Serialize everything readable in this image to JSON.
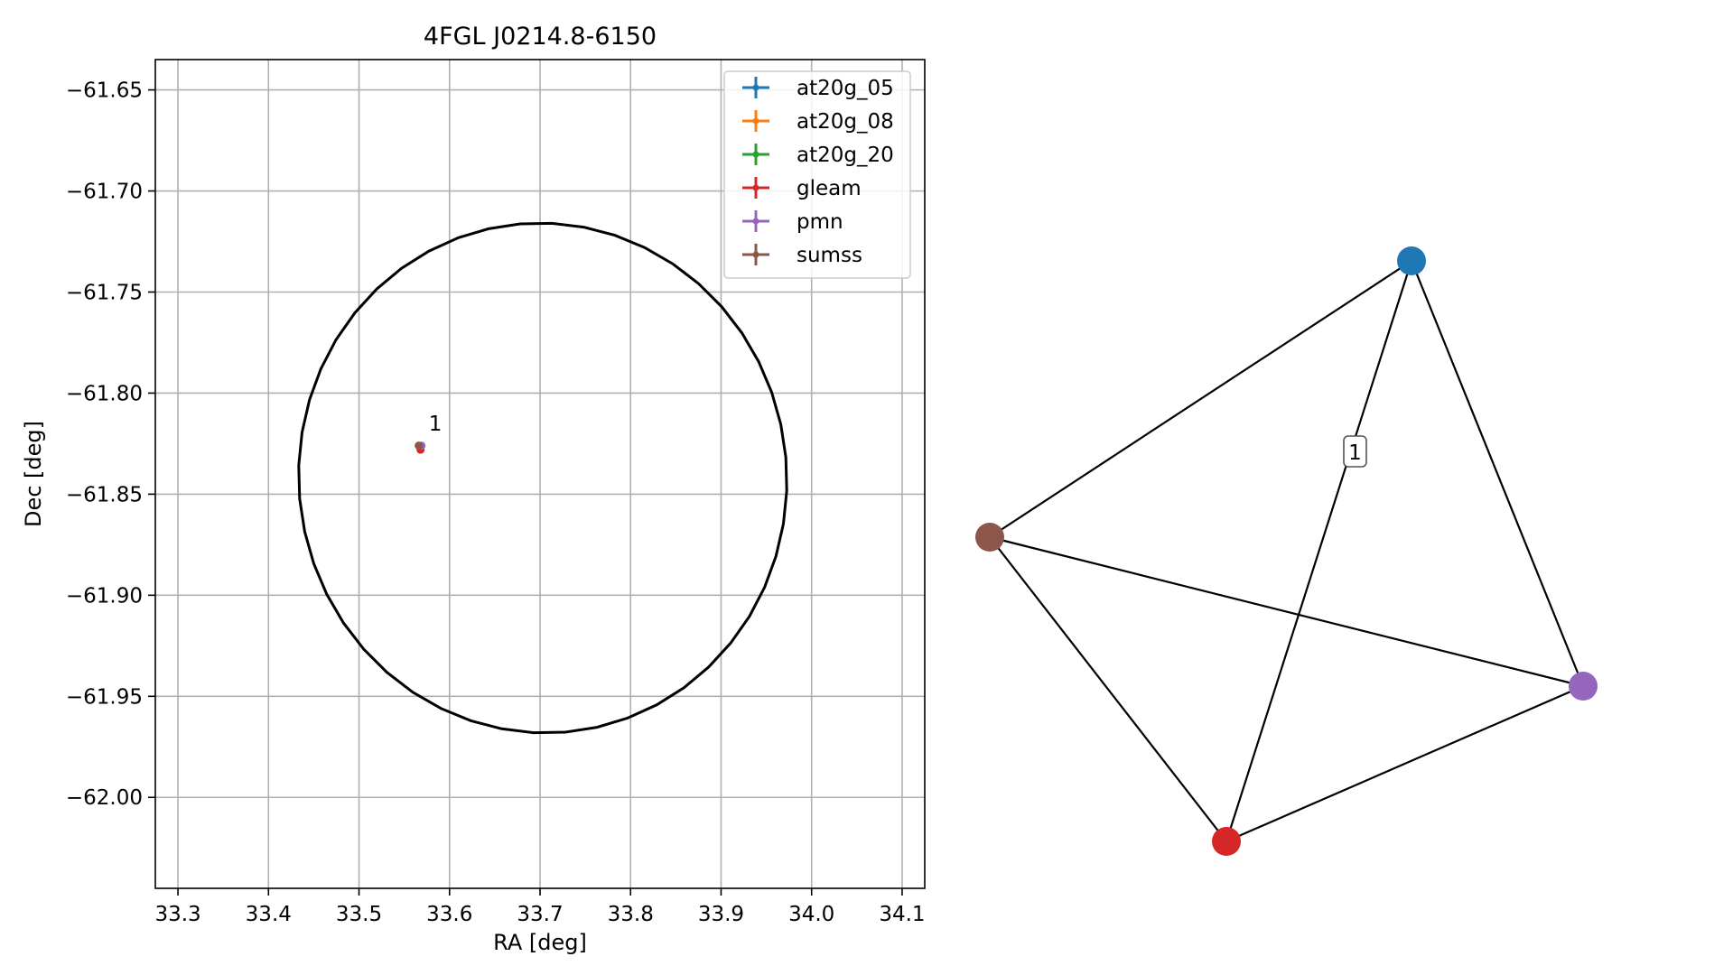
{
  "chart_data": [
    {
      "type": "scatter",
      "title": "4FGL J0214.8-6150",
      "xlabel": "RA [deg]",
      "ylabel": "Dec [deg]",
      "xlim": [
        33.275,
        34.125
      ],
      "ylim": [
        -62.045,
        -61.635
      ],
      "xticks": [
        33.3,
        33.4,
        33.5,
        33.6,
        33.7,
        33.8,
        33.9,
        34.0,
        34.1
      ],
      "xtick_labels": [
        "33.3",
        "33.4",
        "33.5",
        "33.6",
        "33.7",
        "33.8",
        "33.9",
        "34.0",
        "34.1"
      ],
      "yticks": [
        -61.65,
        -61.7,
        -61.75,
        -61.8,
        -61.85,
        -61.9,
        -61.95,
        -62.0
      ],
      "ytick_labels": [
        "−61.65",
        "−61.70",
        "−61.75",
        "−61.80",
        "−61.85",
        "−61.90",
        "−61.95",
        "−62.00"
      ],
      "grid": true,
      "legend_position": "top-right",
      "series": [
        {
          "name": "at20g_05",
          "color": "#1f77b4",
          "points": []
        },
        {
          "name": "at20g_08",
          "color": "#ff7f0e",
          "points": []
        },
        {
          "name": "at20g_20",
          "color": "#2ca02c",
          "points": []
        },
        {
          "name": "gleam",
          "color": "#d62728",
          "points": [
            {
              "x": 33.568,
              "y": -61.828
            }
          ]
        },
        {
          "name": "pmn",
          "color": "#9467bd",
          "points": [
            {
              "x": 33.569,
              "y": -61.826
            }
          ]
        },
        {
          "name": "sumss",
          "color": "#8c564b",
          "points": [
            {
              "x": 33.566,
              "y": -61.826
            }
          ]
        }
      ],
      "ellipse": {
        "center": [
          33.703,
          -61.842
        ],
        "ra_radius": 0.27,
        "dec_radius": 0.126,
        "tilt_deg": -10,
        "color": "#000000"
      },
      "annotations": [
        {
          "text": "1",
          "x": 33.58,
          "y": -61.8185
        }
      ]
    },
    {
      "type": "network",
      "nodes": [
        {
          "id": "at20g",
          "color": "#1f77b4"
        },
        {
          "id": "sumss",
          "color": "#8c564b"
        },
        {
          "id": "pmn",
          "color": "#9467bd"
        },
        {
          "id": "gleam",
          "color": "#d62728"
        }
      ],
      "edges": [
        [
          "at20g",
          "sumss"
        ],
        [
          "at20g",
          "pmn"
        ],
        [
          "at20g",
          "gleam"
        ],
        [
          "sumss",
          "pmn"
        ],
        [
          "sumss",
          "gleam"
        ],
        [
          "pmn",
          "gleam"
        ]
      ],
      "cluster_label": "1"
    }
  ]
}
